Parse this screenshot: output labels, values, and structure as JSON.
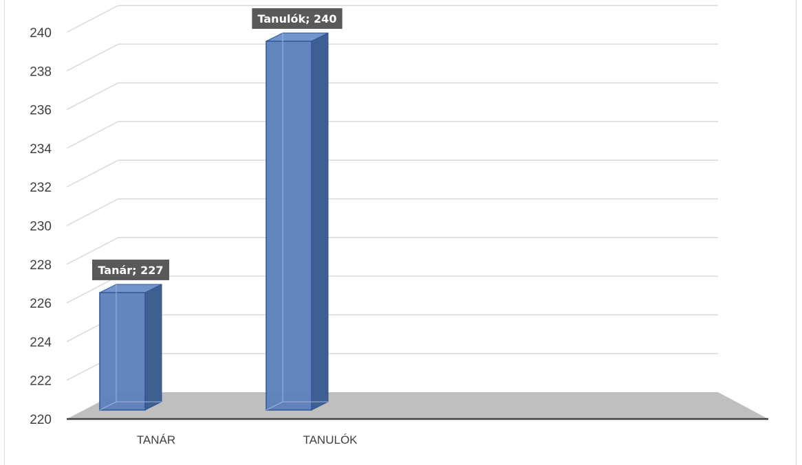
{
  "chart_data": {
    "type": "bar",
    "categories": [
      "TANÁR",
      "TANULÓK"
    ],
    "values": [
      227,
      240
    ],
    "data_labels": [
      "Tanár; 227",
      "Tanulók; 240"
    ],
    "ylim": [
      220,
      240
    ],
    "yticks": [
      220,
      222,
      224,
      226,
      228,
      230,
      232,
      234,
      236,
      238,
      240
    ],
    "grid": true,
    "style": "3d-column",
    "colors": {
      "bar_front": "#5b80ba",
      "bar_side": "#3f5f93",
      "bar_top": "#7296cc",
      "bar_edge": "#2f5597",
      "floor": "#bfbfbf",
      "label_bg": "#595959",
      "grid": "#d9d9d9"
    }
  }
}
